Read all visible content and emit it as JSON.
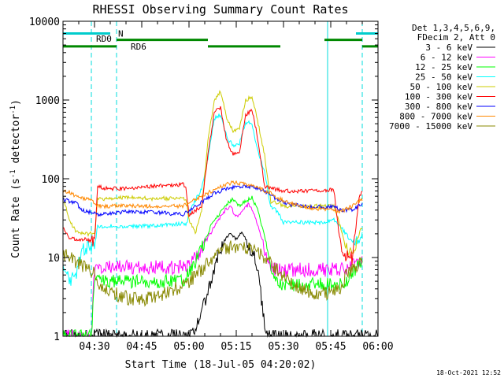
{
  "chart_data": {
    "type": "line",
    "title": "RHESSI Observing Summary Count Rates",
    "xlabel": "Start Time (18-Jul-05 04:20:02)",
    "ylabel": "Count Rate (s⁻¹ detector⁻¹)",
    "ylabel_parts": {
      "pre": "Count Rate (s",
      "sup1": "-1",
      "mid": " detector",
      "sup2": "-1",
      "post": ")"
    },
    "y_scale": "log",
    "ylim": [
      1,
      10000
    ],
    "xlim": [
      0,
      100
    ],
    "x_unit": "minutes after 04:20:02",
    "x_ticks": [
      {
        "t": 10,
        "label": "04:30"
      },
      {
        "t": 25,
        "label": "04:45"
      },
      {
        "t": 40,
        "label": "05:00"
      },
      {
        "t": 55,
        "label": "05:15"
      },
      {
        "t": 70,
        "label": "05:30"
      },
      {
        "t": 85,
        "label": "05:45"
      },
      {
        "t": 100,
        "label": "06:00"
      }
    ],
    "y_ticks": [
      {
        "v": 1,
        "label": "1"
      },
      {
        "v": 10,
        "label": "10"
      },
      {
        "v": 100,
        "label": "100"
      },
      {
        "v": 1000,
        "label": "1000"
      },
      {
        "v": 10000,
        "label": "10000"
      }
    ],
    "grid": false,
    "legend_position": "right",
    "legend_header": [
      "Det 1,3,4,5,6,9,",
      "FDecim 2, Att 0"
    ],
    "series": [
      {
        "name": "3 - 6 keV",
        "color": "#000000",
        "points": [
          [
            0,
            1
          ],
          [
            12,
            1
          ],
          [
            18,
            1
          ],
          [
            36,
            1
          ],
          [
            41,
            1
          ],
          [
            44,
            2
          ],
          [
            47,
            5
          ],
          [
            49,
            10
          ],
          [
            51,
            16
          ],
          [
            53,
            20
          ],
          [
            55,
            17
          ],
          [
            57,
            21
          ],
          [
            59,
            14
          ],
          [
            60,
            12
          ],
          [
            61,
            10
          ],
          [
            62,
            6
          ],
          [
            63,
            3
          ],
          [
            64,
            1.5
          ],
          [
            65,
            1
          ],
          [
            100,
            1
          ]
        ]
      },
      {
        "name": "6 - 12 keV",
        "color": "#ff00ff",
        "points": [
          [
            0,
            1
          ],
          [
            6,
            1
          ],
          [
            9,
            1
          ],
          [
            10,
            7.5
          ],
          [
            21,
            7.5
          ],
          [
            36,
            7.5
          ],
          [
            39,
            7.5
          ],
          [
            43,
            11
          ],
          [
            46,
            18
          ],
          [
            49,
            28
          ],
          [
            51,
            38
          ],
          [
            53,
            45
          ],
          [
            55,
            33
          ],
          [
            57,
            40
          ],
          [
            59,
            48
          ],
          [
            61,
            33
          ],
          [
            63,
            17
          ],
          [
            65,
            9
          ],
          [
            67,
            7
          ],
          [
            70,
            7
          ],
          [
            75,
            7
          ],
          [
            84,
            7
          ],
          [
            87,
            7
          ],
          [
            90,
            7
          ],
          [
            92,
            8
          ],
          [
            94,
            9
          ],
          [
            95,
            9
          ]
        ]
      },
      {
        "name": "12 - 25 keV",
        "color": "#00ff00",
        "points": [
          [
            0,
            1
          ],
          [
            9,
            1
          ],
          [
            10,
            5
          ],
          [
            21,
            5
          ],
          [
            36,
            5
          ],
          [
            38,
            5
          ],
          [
            41,
            7
          ],
          [
            44,
            13
          ],
          [
            47,
            25
          ],
          [
            50,
            38
          ],
          [
            52,
            48
          ],
          [
            54,
            55
          ],
          [
            56,
            45
          ],
          [
            58,
            52
          ],
          [
            60,
            58
          ],
          [
            62,
            38
          ],
          [
            64,
            18
          ],
          [
            66,
            7
          ],
          [
            68,
            5
          ],
          [
            70,
            4.5
          ],
          [
            75,
            4.5
          ],
          [
            84,
            4.5
          ],
          [
            87,
            4.5
          ],
          [
            89,
            4.5
          ],
          [
            92,
            6.5
          ],
          [
            94,
            8
          ],
          [
            95,
            8.5
          ]
        ]
      },
      {
        "name": "25 - 50 keV",
        "color": "#00ffff",
        "points": [
          [
            0,
            9
          ],
          [
            2,
            5
          ],
          [
            4,
            6
          ],
          [
            6,
            12
          ],
          [
            8,
            14
          ],
          [
            10,
            14
          ],
          [
            11,
            25
          ],
          [
            14,
            25
          ],
          [
            20,
            25
          ],
          [
            28,
            25
          ],
          [
            38,
            27
          ],
          [
            39,
            26
          ],
          [
            41,
            45
          ],
          [
            44,
            75
          ],
          [
            46,
            180
          ],
          [
            48,
            580
          ],
          [
            50,
            650
          ],
          [
            52,
            340
          ],
          [
            54,
            260
          ],
          [
            56,
            280
          ],
          [
            58,
            520
          ],
          [
            60,
            500
          ],
          [
            62,
            210
          ],
          [
            64,
            120
          ],
          [
            65,
            70
          ],
          [
            66,
            45
          ],
          [
            68,
            38
          ],
          [
            70,
            28
          ],
          [
            80,
            28
          ],
          [
            84,
            28
          ],
          [
            86,
            30
          ],
          [
            88,
            25
          ],
          [
            92,
            15
          ],
          [
            94,
            16
          ],
          [
            95,
            20
          ]
        ]
      },
      {
        "name": "50 - 100 keV",
        "color": "#cccc00",
        "points": [
          [
            0,
            60
          ],
          [
            2,
            30
          ],
          [
            4,
            22
          ],
          [
            6,
            20
          ],
          [
            8,
            20
          ],
          [
            10,
            20
          ],
          [
            11,
            55
          ],
          [
            14,
            56
          ],
          [
            20,
            58
          ],
          [
            28,
            56
          ],
          [
            38,
            57
          ],
          [
            39,
            56
          ],
          [
            40,
            30
          ],
          [
            42,
            20
          ],
          [
            44,
            40
          ],
          [
            46,
            300
          ],
          [
            48,
            1000
          ],
          [
            50,
            1300
          ],
          [
            52,
            600
          ],
          [
            54,
            400
          ],
          [
            56,
            450
          ],
          [
            58,
            1000
          ],
          [
            60,
            1100
          ],
          [
            62,
            500
          ],
          [
            64,
            200
          ],
          [
            65,
            100
          ],
          [
            66,
            50
          ],
          [
            68,
            50
          ],
          [
            70,
            45
          ],
          [
            80,
            45
          ],
          [
            84,
            45
          ],
          [
            86,
            45
          ],
          [
            88,
            25
          ],
          [
            90,
            13
          ],
          [
            92,
            12
          ],
          [
            94,
            20
          ],
          [
            95,
            25
          ]
        ]
      },
      {
        "name": "100 - 300 keV",
        "color": "#ff0000",
        "points": [
          [
            0,
            25
          ],
          [
            2,
            18
          ],
          [
            4,
            17
          ],
          [
            6,
            17
          ],
          [
            8,
            17
          ],
          [
            10,
            15
          ],
          [
            11,
            80
          ],
          [
            14,
            75
          ],
          [
            20,
            75
          ],
          [
            28,
            80
          ],
          [
            38,
            85
          ],
          [
            39,
            80
          ],
          [
            40,
            35
          ],
          [
            44,
            45
          ],
          [
            46,
            200
          ],
          [
            48,
            700
          ],
          [
            50,
            800
          ],
          [
            52,
            300
          ],
          [
            54,
            200
          ],
          [
            56,
            220
          ],
          [
            58,
            650
          ],
          [
            60,
            750
          ],
          [
            62,
            300
          ],
          [
            64,
            80
          ],
          [
            66,
            75
          ],
          [
            70,
            70
          ],
          [
            80,
            70
          ],
          [
            84,
            72
          ],
          [
            86,
            72
          ],
          [
            88,
            15
          ],
          [
            90,
            10
          ],
          [
            92,
            10
          ],
          [
            94,
            60
          ],
          [
            95,
            70
          ]
        ]
      },
      {
        "name": "300 - 800 keV",
        "color": "#0000ff",
        "points": [
          [
            0,
            55
          ],
          [
            2,
            52
          ],
          [
            4,
            50
          ],
          [
            6,
            40
          ],
          [
            8,
            38
          ],
          [
            10,
            37
          ],
          [
            11,
            35
          ],
          [
            14,
            36
          ],
          [
            20,
            38
          ],
          [
            28,
            38
          ],
          [
            38,
            35
          ],
          [
            44,
            50
          ],
          [
            48,
            65
          ],
          [
            52,
            75
          ],
          [
            56,
            80
          ],
          [
            60,
            78
          ],
          [
            64,
            70
          ],
          [
            68,
            55
          ],
          [
            72,
            47
          ],
          [
            80,
            44
          ],
          [
            84,
            44
          ],
          [
            86,
            45
          ],
          [
            88,
            40
          ],
          [
            92,
            40
          ],
          [
            94,
            45
          ],
          [
            95,
            50
          ]
        ]
      },
      {
        "name": "800 - 7000 keV",
        "color": "#ff8800",
        "points": [
          [
            0,
            70
          ],
          [
            2,
            68
          ],
          [
            4,
            60
          ],
          [
            8,
            55
          ],
          [
            10,
            50
          ],
          [
            11,
            45
          ],
          [
            14,
            45
          ],
          [
            20,
            45
          ],
          [
            28,
            45
          ],
          [
            38,
            45
          ],
          [
            44,
            60
          ],
          [
            50,
            80
          ],
          [
            54,
            90
          ],
          [
            58,
            85
          ],
          [
            62,
            78
          ],
          [
            66,
            65
          ],
          [
            70,
            52
          ],
          [
            76,
            45
          ],
          [
            80,
            42
          ],
          [
            86,
            40
          ],
          [
            88,
            38
          ],
          [
            92,
            45
          ],
          [
            94,
            52
          ],
          [
            95,
            55
          ]
        ]
      },
      {
        "name": "7000 - 15000 keV",
        "color": "#888800",
        "points": [
          [
            0,
            11
          ],
          [
            2,
            10
          ],
          [
            4,
            9
          ],
          [
            6,
            8
          ],
          [
            8,
            7
          ],
          [
            10,
            6.5
          ],
          [
            11,
            5
          ],
          [
            14,
            4
          ],
          [
            18,
            3.2
          ],
          [
            22,
            3
          ],
          [
            26,
            3
          ],
          [
            30,
            3.3
          ],
          [
            36,
            4
          ],
          [
            40,
            5
          ],
          [
            44,
            7
          ],
          [
            48,
            10
          ],
          [
            52,
            13
          ],
          [
            56,
            14.5
          ],
          [
            60,
            13
          ],
          [
            64,
            10
          ],
          [
            68,
            7
          ],
          [
            72,
            5
          ],
          [
            76,
            4
          ],
          [
            80,
            3.5
          ],
          [
            84,
            3.5
          ],
          [
            86,
            3.6
          ],
          [
            88,
            4
          ],
          [
            90,
            6
          ],
          [
            92,
            7
          ],
          [
            94,
            8.5
          ],
          [
            95,
            9
          ]
        ]
      }
    ],
    "annotations": [
      {
        "text": "RD0",
        "t": 10,
        "v": 6000
      },
      {
        "text": "N",
        "t": 17,
        "v": 7000
      },
      {
        "text": "RD6",
        "t": 21,
        "v": 4800
      }
    ],
    "status_bars": [
      {
        "color": "#00cccc",
        "v": 7000,
        "segments": [
          [
            0,
            15
          ],
          [
            93,
            100
          ]
        ]
      },
      {
        "color": "#008800",
        "v": 5800,
        "segments": [
          [
            17,
            46
          ],
          [
            83,
            95
          ]
        ]
      },
      {
        "color": "#008800",
        "v": 4800,
        "segments": [
          [
            0,
            17
          ],
          [
            46,
            69
          ],
          [
            95,
            100
          ]
        ]
      }
    ],
    "markers": [
      {
        "t": 0,
        "color": "#00dddd",
        "style": "solid"
      },
      {
        "t": 9,
        "color": "#00dddd",
        "style": "dashed"
      },
      {
        "t": 17,
        "color": "#00dddd",
        "style": "dashed"
      },
      {
        "t": 84,
        "color": "#00dddd",
        "style": "solid"
      },
      {
        "t": 95,
        "color": "#00dddd",
        "style": "dashed"
      }
    ]
  },
  "footer": {
    "timestamp": "18-Oct-2021 12:52"
  }
}
